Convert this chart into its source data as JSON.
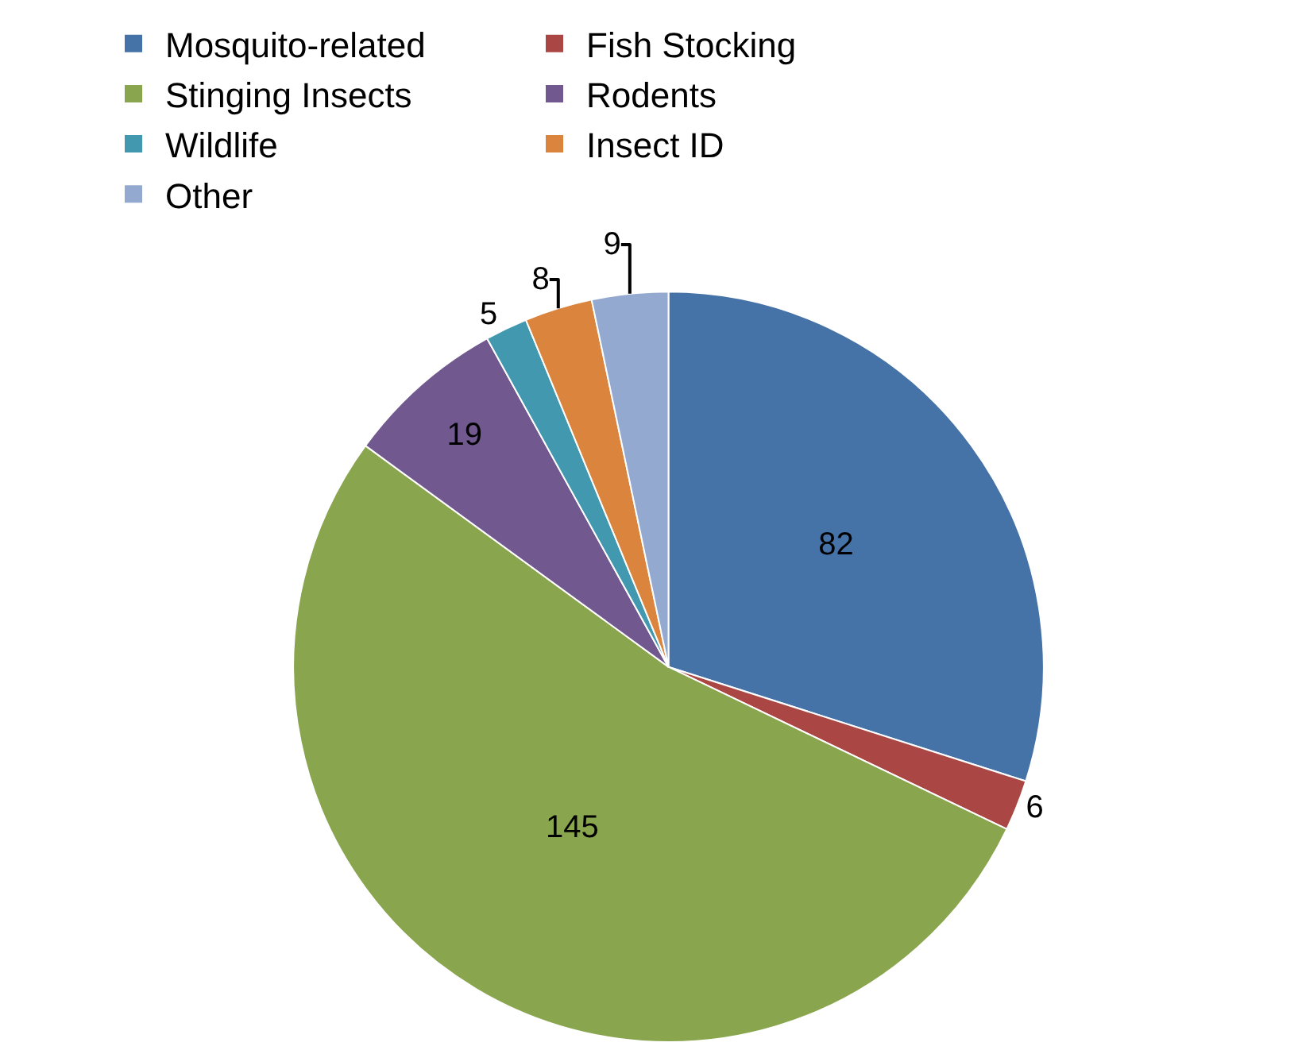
{
  "chart_data": {
    "type": "pie",
    "categories": [
      "Mosquito-related",
      "Fish Stocking",
      "Stinging Insects",
      "Rodents",
      "Wildlife",
      "Insect ID",
      "Other"
    ],
    "values": [
      82,
      6,
      145,
      19,
      5,
      8,
      9
    ],
    "colors": [
      "#4572a7",
      "#aa4643",
      "#89a54e",
      "#71588f",
      "#4198af",
      "#db843d",
      "#93a9cf"
    ],
    "data_labels": true,
    "legend": "top"
  }
}
